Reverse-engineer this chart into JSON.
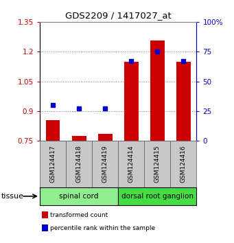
{
  "title": "GDS2209 / 1417027_at",
  "samples": [
    "GSM124417",
    "GSM124418",
    "GSM124419",
    "GSM124414",
    "GSM124415",
    "GSM124416"
  ],
  "groups": [
    {
      "label": "spinal cord",
      "color": "#90EE90",
      "indices": [
        0,
        1,
        2
      ]
    },
    {
      "label": "dorsal root ganglion",
      "color": "#44DD44",
      "indices": [
        3,
        4,
        5
      ]
    }
  ],
  "transformed_count": [
    0.855,
    0.775,
    0.785,
    1.15,
    1.255,
    1.15
  ],
  "percentile_rank": [
    30,
    27,
    27,
    67,
    75,
    67
  ],
  "bar_color": "#CC0000",
  "dot_color": "#0000CC",
  "ylim_left": [
    0.75,
    1.35
  ],
  "ylim_right": [
    0,
    100
  ],
  "yticks_left": [
    0.75,
    0.9,
    1.05,
    1.2,
    1.35
  ],
  "yticks_right": [
    0,
    25,
    50,
    75,
    100
  ],
  "ytick_labels_left": [
    "0.75",
    "0.9",
    "1.05",
    "1.2",
    "1.35"
  ],
  "ytick_labels_right": [
    "0",
    "25",
    "50",
    "75",
    "100%"
  ],
  "tissue_label": "tissue",
  "legend_items": [
    {
      "label": "transformed count",
      "color": "#CC0000"
    },
    {
      "label": "percentile rank within the sample",
      "color": "#0000CC"
    }
  ],
  "bar_width": 0.55,
  "sample_bg_color": "#C8C8C8",
  "sample_border_color": "#555555",
  "group_border_color": "#000000",
  "fig_bg": "#FFFFFF"
}
